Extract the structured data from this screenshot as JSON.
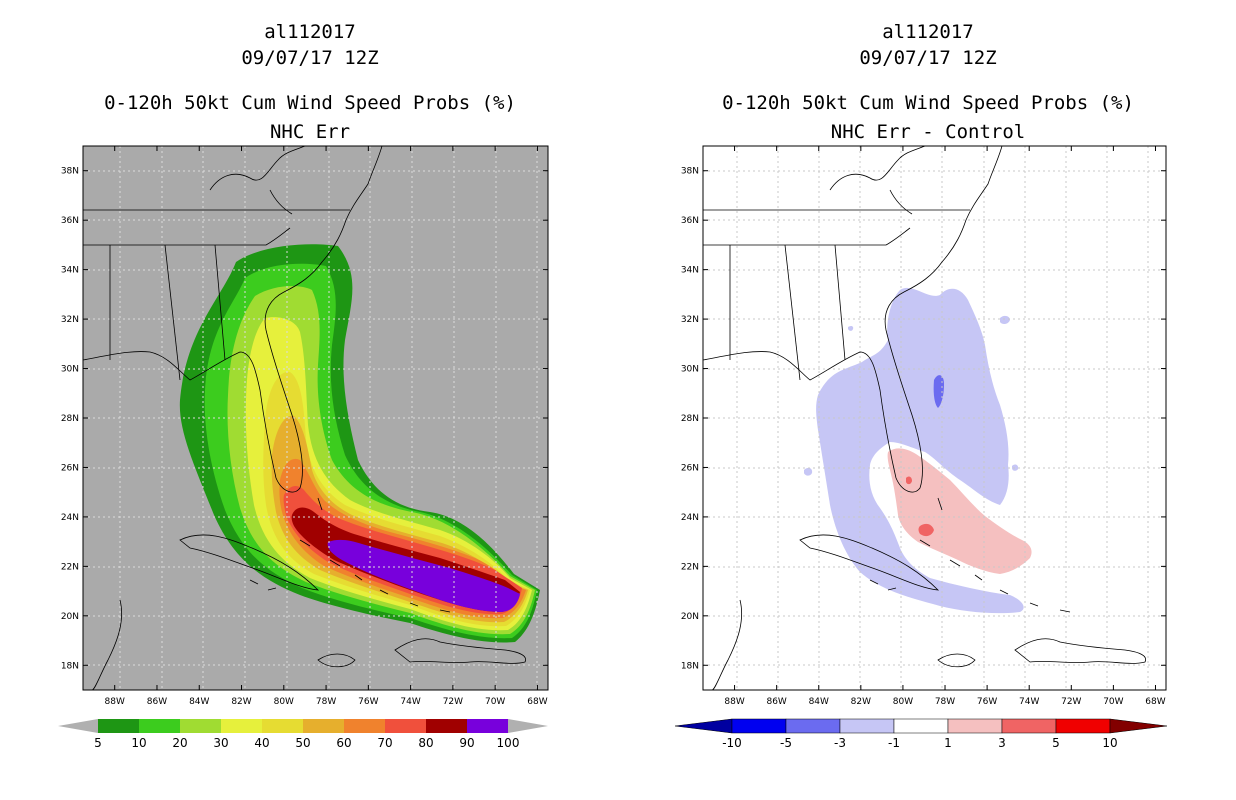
{
  "chart_data": [
    {
      "type": "filled-contour-map",
      "title": [
        "al112017",
        "09/07/17 12Z",
        "0-120h 50kt Cum Wind Speed Probs (%)",
        "NHC Err"
      ],
      "lon_range": [
        -89.5,
        -67.5
      ],
      "lat_range": [
        17,
        39
      ],
      "lon_ticks": [
        "88W",
        "86W",
        "84W",
        "82W",
        "80W",
        "78W",
        "76W",
        "74W",
        "72W",
        "70W",
        "68W"
      ],
      "lat_ticks": [
        "18N",
        "20N",
        "22N",
        "24N",
        "26N",
        "28N",
        "30N",
        "32N",
        "34N",
        "36N",
        "38N"
      ],
      "background": "#aaaaaa",
      "colorbar": {
        "labels": [
          "5",
          "10",
          "20",
          "30",
          "40",
          "50",
          "60",
          "70",
          "80",
          "90",
          "100"
        ],
        "colors": [
          "#1e9614",
          "#3ccc1e",
          "#a0dc32",
          "#e6f03c",
          "#e6dc32",
          "#e6af2d",
          "#f0822d",
          "#f0503c",
          "#a00000",
          "#7800dc"
        ],
        "under_color": "#b0b0b0",
        "over_color": "#b0b0b0"
      },
      "contour_levels": [
        5,
        10,
        20,
        30,
        40,
        50,
        60,
        70,
        80,
        90
      ]
    },
    {
      "type": "filled-contour-map",
      "title": [
        "al112017",
        "09/07/17 12Z",
        "0-120h 50kt Cum Wind Speed Probs (%)",
        "NHC Err - Control"
      ],
      "lon_range": [
        -89.5,
        -67.5
      ],
      "lat_range": [
        17,
        39
      ],
      "lon_ticks": [
        "88W",
        "86W",
        "84W",
        "82W",
        "80W",
        "78W",
        "76W",
        "74W",
        "72W",
        "70W",
        "68W"
      ],
      "lat_ticks": [
        "18N",
        "20N",
        "22N",
        "24N",
        "26N",
        "28N",
        "30N",
        "32N",
        "34N",
        "36N",
        "38N"
      ],
      "background": "#ffffff",
      "colorbar": {
        "labels": [
          "-10",
          "-5",
          "-3",
          "-1",
          "1",
          "3",
          "5",
          "10"
        ],
        "colors": [
          "#0000a0",
          "#0000f0",
          "#6b6bf0",
          "#c6c6f5",
          "#ffffff",
          "#f5c0c0",
          "#f06464",
          "#f00000",
          "#820000"
        ]
      },
      "contour_levels": [
        -3,
        -1,
        1,
        3
      ]
    }
  ]
}
